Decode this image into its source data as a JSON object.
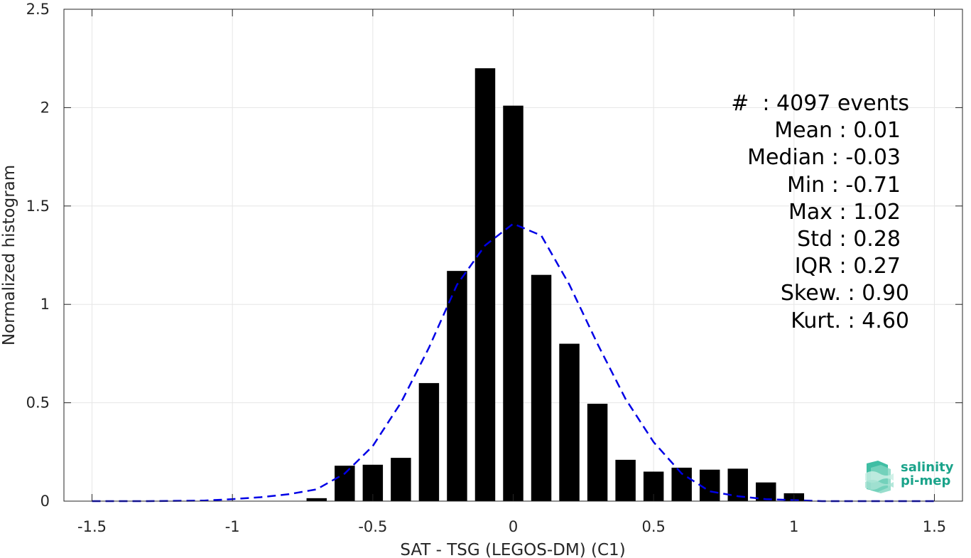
{
  "chart_data": {
    "type": "bar",
    "xlabel": "SAT - TSG (LEGOS-DM) (C1)",
    "ylabel": "Normalized histogram",
    "xlim": [
      -1.6,
      1.6
    ],
    "ylim": [
      0,
      2.5
    ],
    "xticks": [
      -1.5,
      -1,
      -0.5,
      0,
      0.5,
      1,
      1.5
    ],
    "xtick_labels": [
      "-1.5",
      "-1",
      "-0.5",
      "0",
      "0.5",
      "1",
      "1.5"
    ],
    "yticks": [
      0,
      0.5,
      1,
      1.5,
      2,
      2.5
    ],
    "ytick_labels": [
      "0",
      "0.5",
      "1",
      "1.5",
      "2",
      "2.5"
    ],
    "grid": true,
    "bar_color": "#000000",
    "curve_color": "#0000e6",
    "bars": {
      "centers": [
        -0.7,
        -0.6,
        -0.5,
        -0.4,
        -0.3,
        -0.2,
        -0.1,
        0.0,
        0.1,
        0.2,
        0.3,
        0.4,
        0.5,
        0.6,
        0.7,
        0.8,
        0.9,
        1.0
      ],
      "values": [
        0.015,
        0.18,
        0.185,
        0.22,
        0.6,
        1.17,
        2.2,
        2.01,
        1.15,
        0.8,
        0.495,
        0.21,
        0.15,
        0.17,
        0.16,
        0.165,
        0.095,
        0.04
      ]
    },
    "fit_curve": {
      "style": "dashed",
      "x": [
        -1.5,
        -1.3,
        -1.1,
        -1.0,
        -0.9,
        -0.8,
        -0.7,
        -0.6,
        -0.5,
        -0.4,
        -0.3,
        -0.2,
        -0.1,
        0.0,
        0.1,
        0.2,
        0.3,
        0.4,
        0.5,
        0.6,
        0.7,
        0.8,
        0.9,
        1.0,
        1.1,
        1.3,
        1.5
      ],
      "y": [
        0.0,
        0.0,
        0.003,
        0.01,
        0.02,
        0.035,
        0.06,
        0.14,
        0.28,
        0.5,
        0.78,
        1.1,
        1.3,
        1.41,
        1.35,
        1.1,
        0.8,
        0.52,
        0.3,
        0.14,
        0.05,
        0.025,
        0.01,
        0.005,
        0.0,
        0.0,
        0.0
      ]
    }
  },
  "stats": {
    "count": "#  : 4097 events",
    "mean": "Mean : 0.01",
    "median": "Median : -0.03",
    "min": "Min : -0.71",
    "max": "Max : 1.02",
    "std": "Std : 0.28",
    "iqr": "IQR : 0.27",
    "skew": "Skew. : 0.90",
    "kurt": "Kurt. : 4.60"
  },
  "logo": {
    "line1": "salinity",
    "line2": "pi-mep",
    "color": "#1aa38a"
  }
}
